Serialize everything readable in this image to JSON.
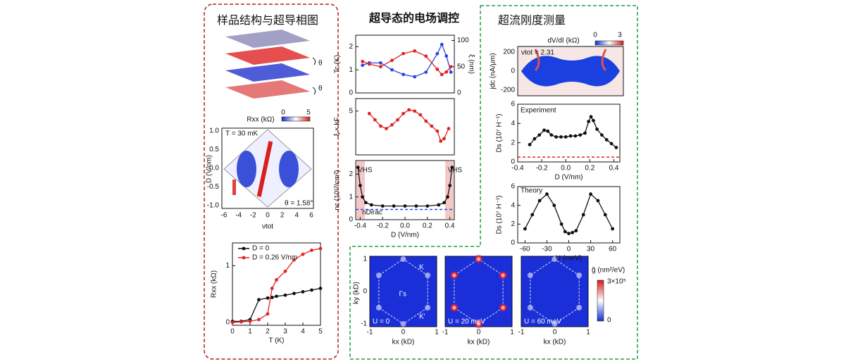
{
  "sections": {
    "left_title": "样品结构与超导相图",
    "middle_title": "超导态的电场调控",
    "right_title": "超流刚度测量"
  },
  "structure": {
    "twist_labels": [
      "θ",
      "θ"
    ]
  },
  "heatmaps": {
    "phase_diagram": {
      "colorbar_label": "Rxx (kΩ)",
      "colorbar_ticks": [
        "0",
        "5"
      ],
      "temperature": "T = 30 mK",
      "angle": "θ = 1.58°",
      "xticks": [
        "-6",
        "-4",
        "-2",
        "0",
        "2",
        "4",
        "6"
      ],
      "yticks": [
        "1.0",
        "0.5",
        "0.0",
        "-0.5",
        "-1.0"
      ],
      "x_label": "νtot",
      "y_label": "D (V/nm)"
    },
    "dvdi": {
      "colorbar_label": "dV/dI (kΩ)",
      "colorbar_ticks": [
        "0",
        "3"
      ],
      "filling": "νtot = 2.31",
      "yticks": [
        "200",
        "0",
        "-200"
      ],
      "y_label": "jdc (nA/μm)"
    },
    "qgm": {
      "y_label": "ky (kD)",
      "yticks": [
        "1",
        "0",
        "-1"
      ],
      "xticks": [
        "-1",
        "0",
        "1"
      ],
      "x_label": "kx (kD)",
      "panels": [
        "U = 0",
        "U = 20 meV",
        "U = 60 meV"
      ],
      "points": [
        "K",
        "Γs",
        "K'"
      ],
      "colorbar_label": "g̃ (nm²/eV)",
      "colorbar_ticks": [
        "3×10⁵",
        "0"
      ]
    }
  },
  "chart_data": [
    {
      "type": "line",
      "y_label": "Tc (K)",
      "y2_label": "ξ (nm)",
      "xlim": [
        -0.42,
        0.45
      ],
      "ylim": [
        0,
        2.5
      ],
      "yticks": [
        0,
        1,
        2
      ],
      "y2lim": [
        0,
        110
      ],
      "y2ticks": [
        0,
        50,
        100
      ],
      "x": [
        -0.36,
        -0.3,
        -0.2,
        -0.1,
        0,
        0.1,
        0.2,
        0.3,
        0.34,
        0.38,
        0.42
      ],
      "series": [
        {
          "name": "Tc",
          "color": "#2a46e0",
          "values": [
            1.2,
            1.3,
            1.3,
            1.0,
            0.8,
            0.7,
            0.9,
            1.7,
            2.1,
            1.6,
            0.9
          ]
        },
        {
          "name": "ξ",
          "color": "#e02424",
          "axis": "y2",
          "values": [
            60,
            55,
            50,
            62,
            75,
            80,
            70,
            45,
            35,
            40,
            50
          ]
        }
      ]
    },
    {
      "type": "line",
      "y_label": "ξ × kF",
      "xlim": [
        -0.42,
        0.45
      ],
      "ylim": [
        1.5,
        6
      ],
      "yticks": [
        5
      ],
      "x": [
        -0.3,
        -0.25,
        -0.2,
        -0.15,
        -0.1,
        -0.05,
        0,
        0.05,
        0.1,
        0.15,
        0.2,
        0.25,
        0.3,
        0.33,
        0.36,
        0.4
      ],
      "series": [
        {
          "name": "ξ × kF",
          "color": "#e02424",
          "values": [
            4.8,
            4.3,
            3.8,
            3.6,
            3.9,
            4.3,
            4.8,
            5.1,
            5.0,
            4.7,
            4.2,
            3.8,
            3.4,
            2.6,
            2.8,
            3.6
          ]
        }
      ]
    },
    {
      "type": "line",
      "y_label": "nc (10¹³/cm²)",
      "x_label": "D (V/nm)",
      "xlim": [
        -0.44,
        0.44
      ],
      "ylim": [
        0,
        2.6
      ],
      "yticks": [
        0,
        1,
        2
      ],
      "xticks": [
        -0.4,
        -0.2,
        {
          "value": 0,
          "label": "0.0"
        },
        0.2,
        0.4
      ],
      "ref_line": 0.45,
      "ref_color": "#2a46e0",
      "annotations": [
        "VHS",
        "VHS",
        "nDirac"
      ],
      "x": [
        -0.42,
        -0.4,
        -0.38,
        -0.35,
        -0.3,
        -0.2,
        -0.1,
        0,
        0.1,
        0.2,
        0.3,
        0.35,
        0.38,
        0.4,
        0.42
      ],
      "series": [
        {
          "name": "nc",
          "color": "#111111",
          "values": [
            2.3,
            1.5,
            1.0,
            0.75,
            0.65,
            0.6,
            0.6,
            0.6,
            0.6,
            0.6,
            0.65,
            0.75,
            1.0,
            1.5,
            2.3
          ]
        }
      ]
    },
    {
      "type": "line",
      "y_label": "Rxx (kΩ)",
      "x_label": "T (K)",
      "xlim": [
        0,
        5
      ],
      "ylim": [
        -0.05,
        1.4
      ],
      "xticks": [
        0,
        1,
        2,
        3,
        4,
        5
      ],
      "yticks": [
        0,
        1
      ],
      "legend": "top-left",
      "x": [
        0,
        0.5,
        1,
        1.5,
        2,
        2.25,
        2.5,
        3,
        3.5,
        4,
        4.5,
        5
      ],
      "series": [
        {
          "name": "D = 0",
          "color": "#111111",
          "values": [
            0.02,
            0.02,
            0.05,
            0.4,
            0.43,
            0.44,
            0.46,
            0.48,
            0.51,
            0.54,
            0.57,
            0.6
          ]
        },
        {
          "name": "D = 0.26 V/nm",
          "color": "#e02424",
          "values": [
            0,
            0.01,
            0.02,
            0.05,
            0.15,
            0.6,
            0.75,
            0.9,
            1.1,
            1.2,
            1.27,
            1.3
          ]
        }
      ]
    },
    {
      "type": "line",
      "y_label": "Ds (10⁷ H⁻¹)",
      "x_label": "D (V/nm)",
      "xlim": [
        -0.4,
        0.45
      ],
      "ylim": [
        0,
        6
      ],
      "yticks": [
        0,
        2,
        4,
        6
      ],
      "xticks": [
        -0.4,
        -0.2,
        {
          "value": 0,
          "label": "0.0"
        },
        0.2,
        0.4
      ],
      "ref_line": 0.5,
      "ref_color": "#e02424",
      "annotations": [
        "Experiment"
      ],
      "x": [
        -0.3,
        -0.26,
        -0.22,
        -0.18,
        -0.15,
        -0.12,
        -0.08,
        -0.04,
        0,
        0.04,
        0.08,
        0.12,
        0.16,
        0.19,
        0.21,
        0.23,
        0.26,
        0.3,
        0.34,
        0.38,
        0.42
      ],
      "series": [
        {
          "name": "Experiment",
          "color": "#111111",
          "values": [
            1.8,
            2.4,
            2.8,
            3.3,
            3.2,
            2.8,
            2.6,
            2.6,
            2.6,
            2.7,
            2.7,
            2.8,
            3.0,
            4.2,
            4.7,
            4.3,
            3.4,
            2.8,
            2.3,
            1.9,
            1.5
          ]
        }
      ]
    },
    {
      "type": "line",
      "y_label": "Ds (10⁷ H⁻¹)",
      "x_label": "U (meV)",
      "xlim": [
        -70,
        70
      ],
      "ylim": [
        0,
        6
      ],
      "yticks": [
        0,
        2,
        4,
        6
      ],
      "xticks": [
        -60,
        -30,
        0,
        30,
        60
      ],
      "annotations": [
        "Theory"
      ],
      "x": [
        -60,
        -50,
        -40,
        -30,
        -20,
        -10,
        -5,
        0,
        5,
        10,
        20,
        30,
        40,
        50,
        60
      ],
      "series": [
        {
          "name": "Theory",
          "color": "#111111",
          "values": [
            1.5,
            3.0,
            4.5,
            5.2,
            4.0,
            2.0,
            1.2,
            1.0,
            1.1,
            1.3,
            3.0,
            5.2,
            4.5,
            3.0,
            1.5
          ]
        }
      ]
    }
  ]
}
